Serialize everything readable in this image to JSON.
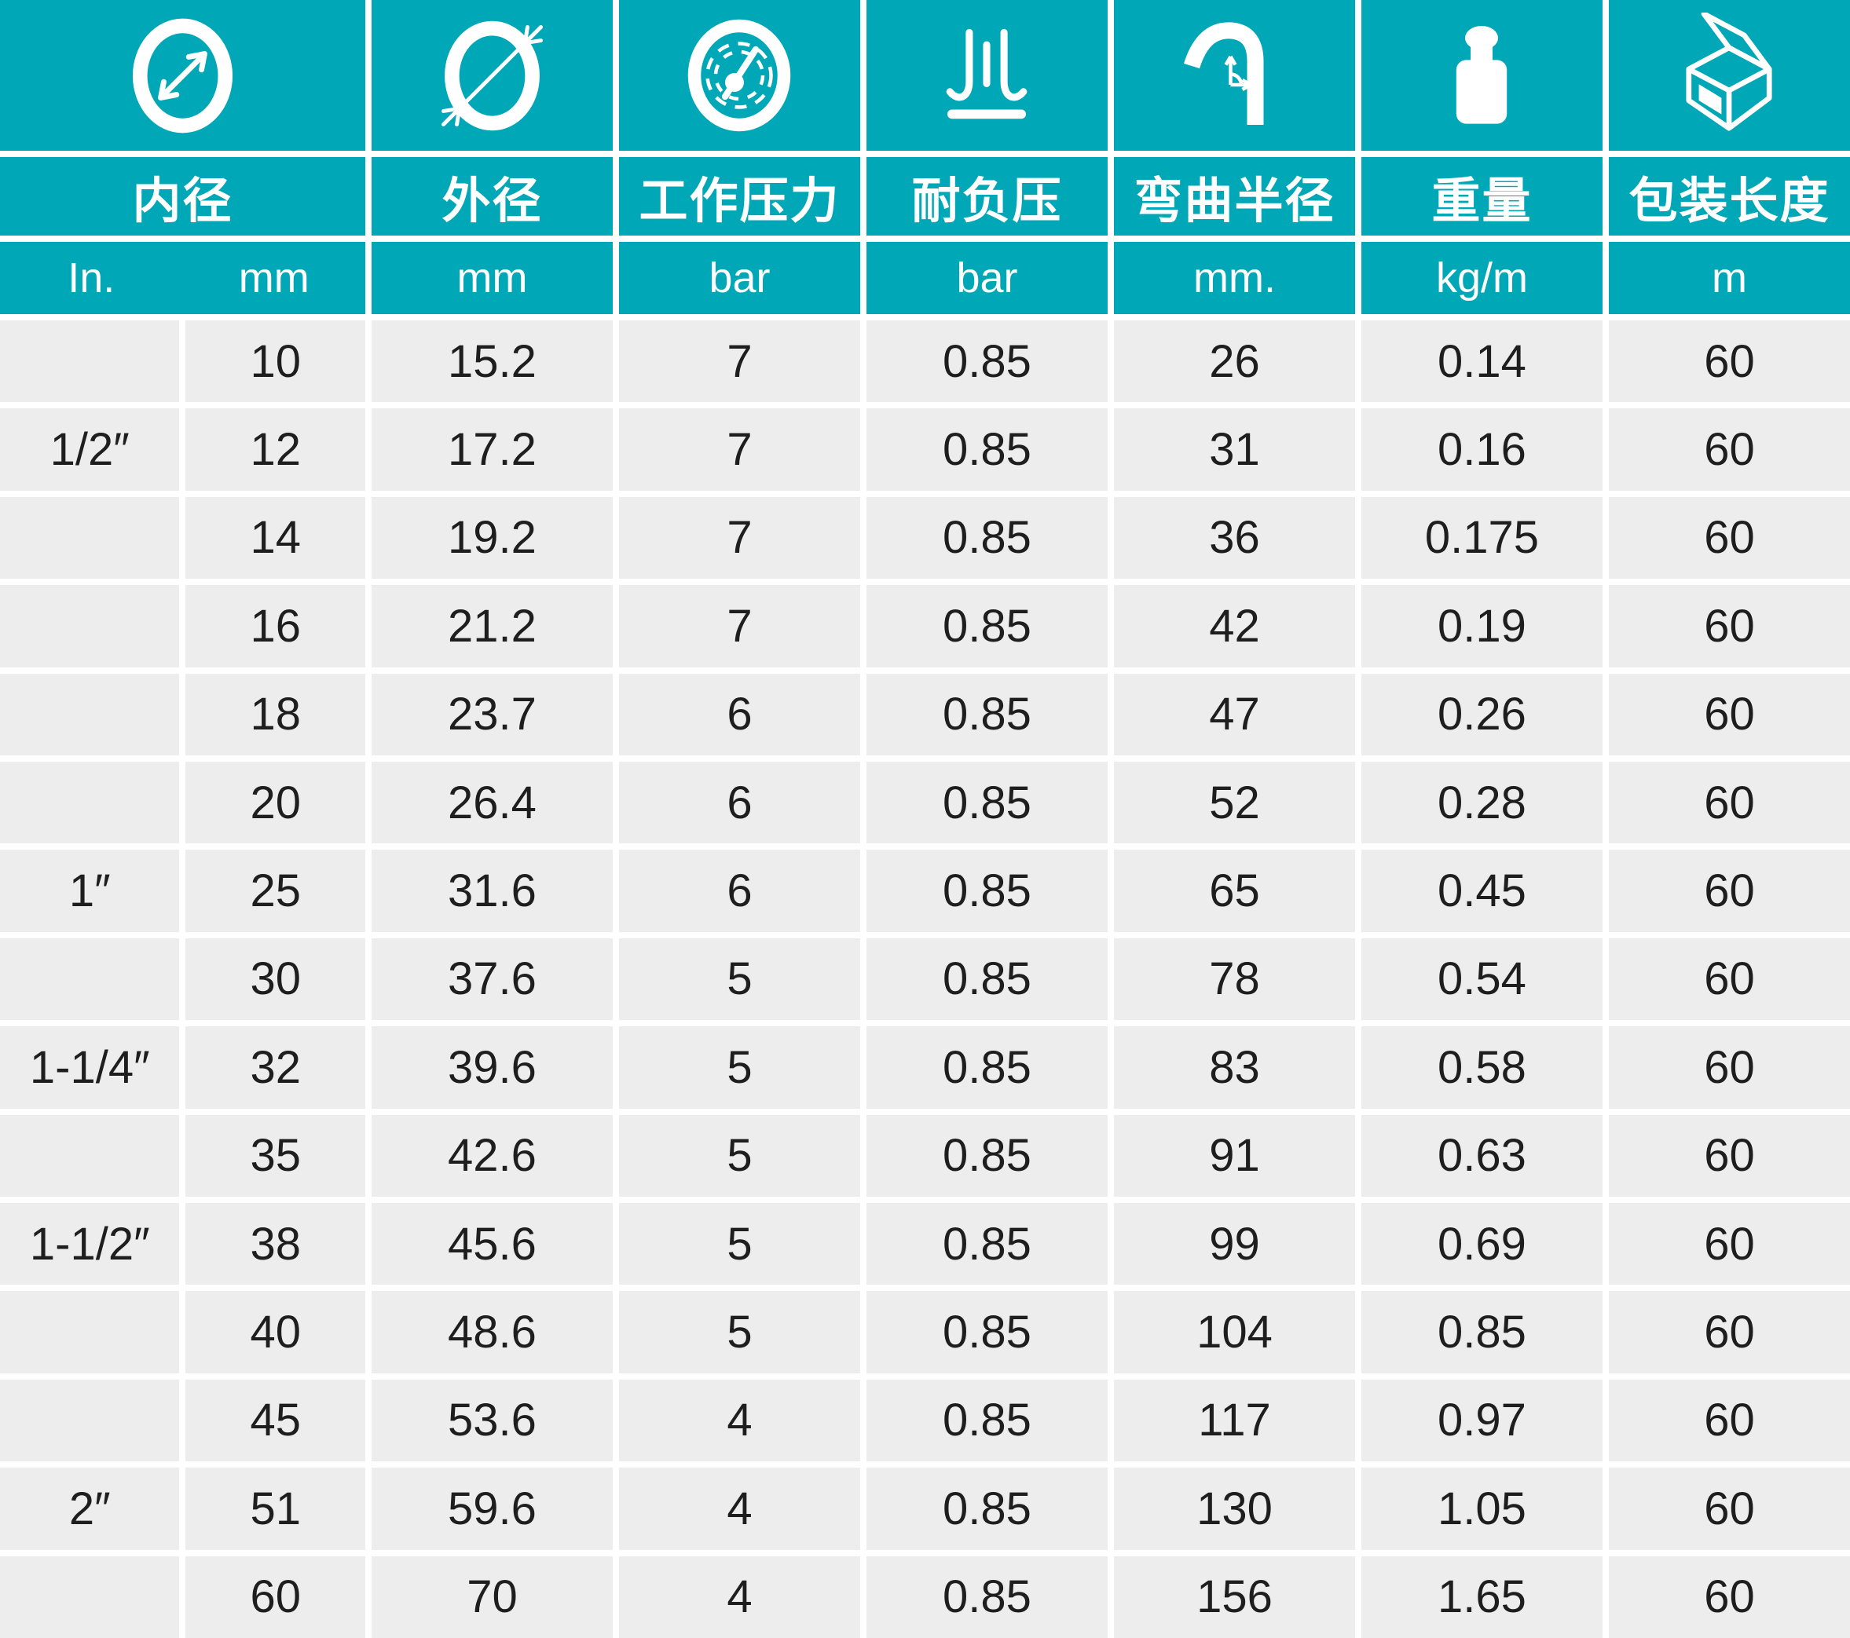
{
  "chart_data": {
    "type": "table",
    "title": "",
    "columns": [
      {
        "label": "内径",
        "icon": "inner-diameter-icon",
        "units": [
          "In.",
          "mm"
        ]
      },
      {
        "label": "外径",
        "icon": "outer-diameter-icon",
        "units": [
          "mm"
        ]
      },
      {
        "label": "工作压力",
        "icon": "pressure-gauge-icon",
        "units": [
          "bar"
        ]
      },
      {
        "label": "耐负压",
        "icon": "vacuum-icon",
        "units": [
          "bar"
        ]
      },
      {
        "label": "弯曲半径",
        "icon": "bend-radius-icon",
        "units": [
          "mm."
        ]
      },
      {
        "label": "重量",
        "icon": "weight-icon",
        "units": [
          "kg/m"
        ]
      },
      {
        "label": "包装长度",
        "icon": "package-icon",
        "units": [
          "m"
        ]
      }
    ],
    "rows": [
      [
        "",
        "10",
        "15.2",
        "7",
        "0.85",
        "26",
        "0.14",
        "60"
      ],
      [
        "1/2″",
        "12",
        "17.2",
        "7",
        "0.85",
        "31",
        "0.16",
        "60"
      ],
      [
        "",
        "14",
        "19.2",
        "7",
        "0.85",
        "36",
        "0.175",
        "60"
      ],
      [
        "",
        "16",
        "21.2",
        "7",
        "0.85",
        "42",
        "0.19",
        "60"
      ],
      [
        "",
        "18",
        "23.7",
        "6",
        "0.85",
        "47",
        "0.26",
        "60"
      ],
      [
        "",
        "20",
        "26.4",
        "6",
        "0.85",
        "52",
        "0.28",
        "60"
      ],
      [
        "1″",
        "25",
        "31.6",
        "6",
        "0.85",
        "65",
        "0.45",
        "60"
      ],
      [
        "",
        "30",
        "37.6",
        "5",
        "0.85",
        "78",
        "0.54",
        "60"
      ],
      [
        "1-1/4″",
        "32",
        "39.6",
        "5",
        "0.85",
        "83",
        "0.58",
        "60"
      ],
      [
        "",
        "35",
        "42.6",
        "5",
        "0.85",
        "91",
        "0.63",
        "60"
      ],
      [
        "1-1/2″",
        "38",
        "45.6",
        "5",
        "0.85",
        "99",
        "0.69",
        "60"
      ],
      [
        "",
        "40",
        "48.6",
        "5",
        "0.85",
        "104",
        "0.85",
        "60"
      ],
      [
        "",
        "45",
        "53.6",
        "4",
        "0.85",
        "117",
        "0.97",
        "60"
      ],
      [
        "2″",
        "51",
        "59.6",
        "4",
        "0.85",
        "130",
        "1.05",
        "60"
      ],
      [
        "",
        "60",
        "70",
        "4",
        "0.85",
        "156",
        "1.65",
        "60"
      ]
    ]
  },
  "theme": {
    "header_teal": "#00a7b7",
    "cell_background": "#ededed",
    "gutter": "#ffffff",
    "text_dark": "#1e1e1e",
    "text_light": "#ffffff"
  }
}
